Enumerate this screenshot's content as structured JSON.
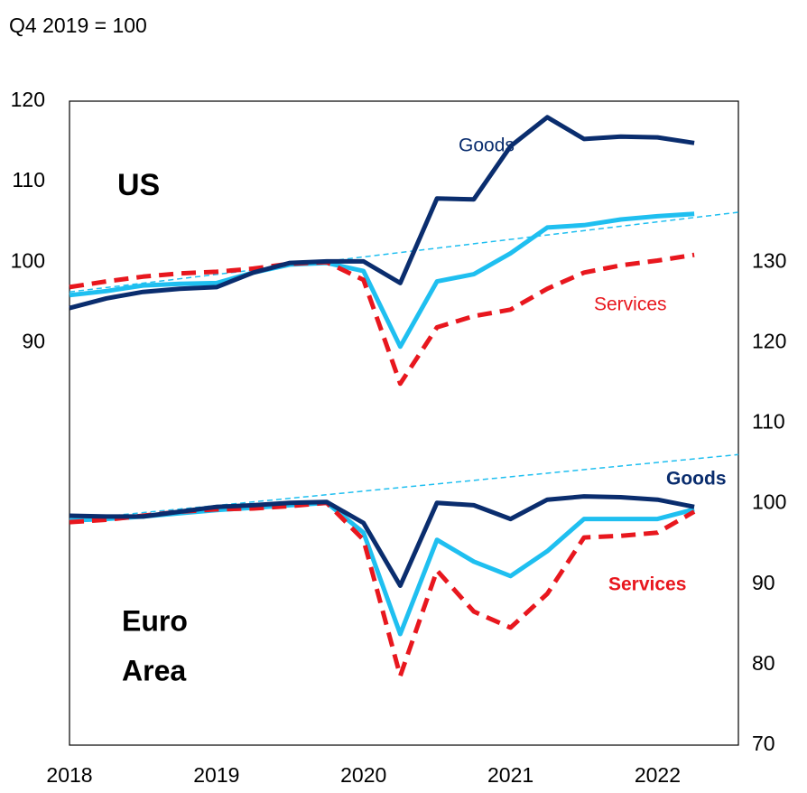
{
  "chart_data": {
    "type": "line",
    "subtitle": "Q4 2019 = 100",
    "x": [
      2018,
      2018.25,
      2018.5,
      2018.75,
      2019,
      2019.25,
      2019.5,
      2019.75,
      2020,
      2020.25,
      2020.5,
      2020.75,
      2021,
      2021.25,
      2021.5,
      2021.75,
      2022,
      2022.25
    ],
    "xlim": [
      2018,
      2022.55
    ],
    "xticks": [
      2018,
      2019,
      2020,
      2021,
      2022
    ],
    "ylim": [
      40,
      120
    ],
    "yticks": [
      90,
      100,
      110,
      120
    ],
    "y2lim": [
      70,
      150
    ],
    "y2ticks": [
      70,
      80,
      90,
      100,
      110,
      120,
      130
    ],
    "series": [
      {
        "color": "#1fbff0",
        "dash": false,
        "values": [
          95.9,
          96.4,
          97.1,
          97.3,
          97.4,
          98.7,
          99.7,
          99.9,
          98.9,
          89.5,
          97.6,
          98.5,
          101.1,
          104.3,
          104.6,
          105.3,
          105.7,
          106.0
        ]
      },
      {
        "color": "#e8171e",
        "dash": true,
        "values": [
          96.9,
          97.6,
          98.2,
          98.6,
          98.8,
          99.2,
          99.8,
          100.0,
          97.8,
          84.9,
          91.9,
          93.3,
          94.1,
          96.7,
          98.7,
          99.6,
          100.2,
          100.9
        ]
      },
      {
        "color": "#0a2d6e",
        "dash": false,
        "values": [
          94.3,
          95.5,
          96.3,
          96.7,
          96.9,
          98.7,
          99.9,
          100.1,
          100.1,
          97.4,
          107.9,
          107.8,
          114.4,
          118.0,
          115.3,
          115.6,
          115.5,
          114.8
        ]
      },
      {
        "color": "#1fbff0",
        "dash": false,
        "axis": "y2",
        "values": [
          97.9,
          98.1,
          98.4,
          98.8,
          99.2,
          99.5,
          99.8,
          100.1,
          96.4,
          83.8,
          95.5,
          92.8,
          91.0,
          94.1,
          98.1,
          98.1,
          98.1,
          99.3
        ]
      },
      {
        "color": "#e8171e",
        "dash": true,
        "axis": "y2",
        "values": [
          97.7,
          98.0,
          98.5,
          99.0,
          99.3,
          99.4,
          99.7,
          100.1,
          95.5,
          78.6,
          91.7,
          86.6,
          84.6,
          88.8,
          95.8,
          96.0,
          96.4,
          99.0
        ]
      },
      {
        "color": "#0a2d6e",
        "dash": false,
        "axis": "y2",
        "values": [
          98.5,
          98.4,
          98.4,
          99.0,
          99.6,
          99.8,
          100.1,
          100.2,
          97.6,
          89.8,
          100.1,
          99.8,
          98.1,
          100.5,
          100.9,
          100.8,
          100.5,
          99.6
        ]
      }
    ],
    "trend_lines": [
      {
        "color": "#1fbff0",
        "x": [
          2018,
          2022.55
        ],
        "values": [
          96.3,
          106.2
        ]
      },
      {
        "color": "#1fbff0",
        "axis": "y2",
        "x": [
          2018,
          2022.55
        ],
        "values": [
          98.0,
          106.1
        ]
      }
    ],
    "annotations": [
      {
        "text": "US",
        "color": "#000000",
        "bold": true
      },
      {
        "text": "Goods",
        "color": "#0a2d6e",
        "bold": false
      },
      {
        "text": "Services",
        "color": "#e8171e",
        "bold": false
      },
      {
        "text": "Goods",
        "color": "#0a2d6e",
        "bold": true
      },
      {
        "text": "Services",
        "color": "#e8171e",
        "bold": true
      },
      {
        "text": "Euro",
        "color": "#000000",
        "bold": true
      },
      {
        "text": "Area",
        "color": "#000000",
        "bold": true
      }
    ]
  }
}
